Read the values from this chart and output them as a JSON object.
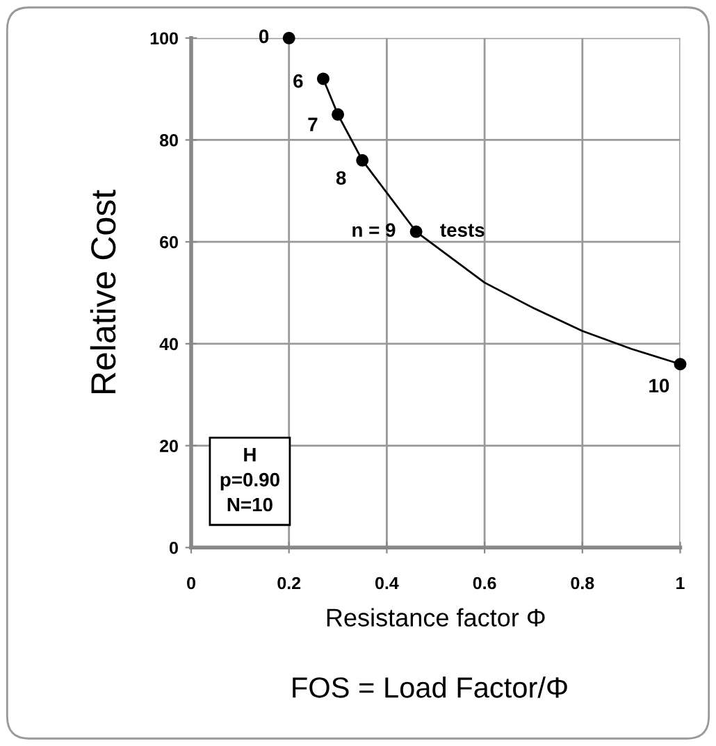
{
  "chart_data": {
    "type": "scatter",
    "xlabel": "Resistance factor Φ",
    "ylabel": "Relative Cost",
    "x": [
      0.2,
      0.27,
      0.3,
      0.35,
      0.46,
      1.0
    ],
    "series": [
      {
        "color": "#000000",
        "values": [
          100,
          92,
          85,
          76,
          62,
          36
        ],
        "marker": "circle"
      },
      {
        "type": "line",
        "color": "#000000",
        "x": [
          0.27,
          0.3,
          0.35,
          0.46,
          0.6,
          0.7,
          0.8,
          0.9,
          1.0
        ],
        "values": [
          92,
          85,
          76,
          62,
          52,
          47,
          42.5,
          39,
          36
        ],
        "marker": "none",
        "line_style": "solid"
      }
    ],
    "xlim": [
      0,
      1
    ],
    "ylim": [
      0,
      100
    ],
    "xticks": [
      0,
      0.2,
      0.4,
      0.6,
      0.8,
      1
    ],
    "yticks": [
      0,
      20,
      40,
      60,
      80,
      100
    ],
    "grid": true,
    "annotations": [
      {
        "text": "0",
        "x": 0.2,
        "y": 100
      },
      {
        "text": "6",
        "x": 0.27,
        "y": 92
      },
      {
        "text": "7",
        "x": 0.3,
        "y": 85
      },
      {
        "text": "8",
        "x": 0.35,
        "y": 76
      },
      {
        "text": "n = 9",
        "x": 0.46,
        "y": 62
      },
      {
        "text": "tests",
        "x": 0.46,
        "y": 62
      },
      {
        "text": "10",
        "x": 1.0,
        "y": 36
      },
      "H\np=0.90\nN=10",
      "FOS = Load Factor/Φ"
    ]
  }
}
